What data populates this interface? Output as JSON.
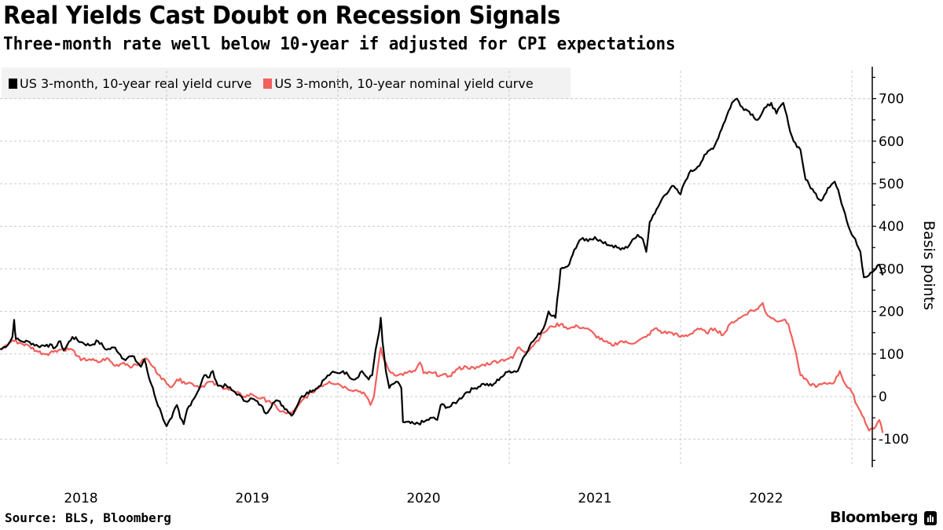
{
  "header": {
    "title": "Real Yields Cast Doubt on Recession Signals",
    "subtitle": "Three-month rate well below 10-year if adjusted for CPI expectations"
  },
  "footer": {
    "source": "Source: BLS, Bloomberg",
    "brand": "Bloomberg",
    "brand_icon": "bloomberg-terminal-icon"
  },
  "chart_data": {
    "type": "line",
    "title": "Real Yields Cast Doubt on Recession Signals",
    "subtitle": "Three-month rate well below 10-year if adjusted for CPI expectations",
    "xlabel": "",
    "ylabel": "Basis points",
    "xlim": [
      2018.0,
      2022.95
    ],
    "ylim": [
      -160,
      780
    ],
    "x_ticks": [
      2018,
      2019,
      2020,
      2021,
      2022
    ],
    "x_tick_labels": [
      "2018",
      "2019",
      "2020",
      "2021",
      "2022"
    ],
    "y_ticks": [
      -100,
      0,
      100,
      200,
      300,
      400,
      500,
      600,
      700
    ],
    "y_tick_labels": [
      "-100",
      "0",
      "100",
      "200",
      "300",
      "400",
      "500",
      "600",
      "700"
    ],
    "y_axis_side": "right",
    "grid": true,
    "legend_position": "top-left",
    "series": [
      {
        "name": "US 3-month, 10-year real yield curve",
        "color": "#000000",
        "points": [
          [
            2018.03,
            110
          ],
          [
            2018.08,
            125
          ],
          [
            2018.1,
            140
          ],
          [
            2018.11,
            180
          ],
          [
            2018.12,
            135
          ],
          [
            2018.15,
            130
          ],
          [
            2018.2,
            128
          ],
          [
            2018.25,
            118
          ],
          [
            2018.3,
            122
          ],
          [
            2018.35,
            115
          ],
          [
            2018.38,
            130
          ],
          [
            2018.4,
            108
          ],
          [
            2018.45,
            140
          ],
          [
            2018.5,
            128
          ],
          [
            2018.55,
            120
          ],
          [
            2018.6,
            130
          ],
          [
            2018.65,
            110
          ],
          [
            2018.7,
            115
          ],
          [
            2018.75,
            88
          ],
          [
            2018.8,
            95
          ],
          [
            2018.85,
            70
          ],
          [
            2018.87,
            88
          ],
          [
            2018.9,
            40
          ],
          [
            2018.92,
            20
          ],
          [
            2018.94,
            -10
          ],
          [
            2018.97,
            -40
          ],
          [
            2019.0,
            -70
          ],
          [
            2019.03,
            -50
          ],
          [
            2019.06,
            -20
          ],
          [
            2019.08,
            -50
          ],
          [
            2019.1,
            -65
          ],
          [
            2019.12,
            -30
          ],
          [
            2019.15,
            -10
          ],
          [
            2019.18,
            10
          ],
          [
            2019.22,
            50
          ],
          [
            2019.25,
            45
          ],
          [
            2019.27,
            60
          ],
          [
            2019.3,
            25
          ],
          [
            2019.35,
            25
          ],
          [
            2019.38,
            15
          ],
          [
            2019.42,
            5
          ],
          [
            2019.45,
            -10
          ],
          [
            2019.5,
            -5
          ],
          [
            2019.55,
            -20
          ],
          [
            2019.58,
            -40
          ],
          [
            2019.62,
            -15
          ],
          [
            2019.65,
            -10
          ],
          [
            2019.7,
            -30
          ],
          [
            2019.73,
            -45
          ],
          [
            2019.78,
            -5
          ],
          [
            2019.82,
            10
          ],
          [
            2019.88,
            20
          ],
          [
            2019.92,
            40
          ],
          [
            2019.96,
            55
          ],
          [
            2020.0,
            55
          ],
          [
            2020.03,
            60
          ],
          [
            2020.06,
            50
          ],
          [
            2020.1,
            40
          ],
          [
            2020.14,
            60
          ],
          [
            2020.18,
            40
          ],
          [
            2020.2,
            50
          ],
          [
            2020.22,
            110
          ],
          [
            2020.24,
            150
          ],
          [
            2020.25,
            185
          ],
          [
            2020.26,
            130
          ],
          [
            2020.28,
            60
          ],
          [
            2020.3,
            20
          ],
          [
            2020.34,
            35
          ],
          [
            2020.37,
            20
          ],
          [
            2020.38,
            -60
          ],
          [
            2020.45,
            -65
          ],
          [
            2020.5,
            -60
          ],
          [
            2020.55,
            -50
          ],
          [
            2020.58,
            -55
          ],
          [
            2020.6,
            -20
          ],
          [
            2020.65,
            -25
          ],
          [
            2020.7,
            -10
          ],
          [
            2020.75,
            10
          ],
          [
            2020.8,
            20
          ],
          [
            2020.85,
            30
          ],
          [
            2020.9,
            25
          ],
          [
            2020.95,
            45
          ],
          [
            2021.0,
            60
          ],
          [
            2021.05,
            60
          ],
          [
            2021.08,
            90
          ],
          [
            2021.12,
            120
          ],
          [
            2021.16,
            140
          ],
          [
            2021.2,
            160
          ],
          [
            2021.23,
            200
          ],
          [
            2021.27,
            185
          ],
          [
            2021.3,
            300
          ],
          [
            2021.35,
            310
          ],
          [
            2021.38,
            345
          ],
          [
            2021.42,
            370
          ],
          [
            2021.46,
            365
          ],
          [
            2021.5,
            375
          ],
          [
            2021.55,
            360
          ],
          [
            2021.6,
            355
          ],
          [
            2021.65,
            345
          ],
          [
            2021.7,
            355
          ],
          [
            2021.75,
            380
          ],
          [
            2021.78,
            370
          ],
          [
            2021.8,
            340
          ],
          [
            2021.82,
            410
          ],
          [
            2021.85,
            430
          ],
          [
            2021.9,
            470
          ],
          [
            2021.95,
            495
          ],
          [
            2022.0,
            475
          ],
          [
            2022.02,
            500
          ],
          [
            2022.05,
            525
          ],
          [
            2022.1,
            540
          ],
          [
            2022.15,
            570
          ],
          [
            2022.2,
            590
          ],
          [
            2022.25,
            640
          ],
          [
            2022.3,
            690
          ],
          [
            2022.33,
            700
          ],
          [
            2022.36,
            680
          ],
          [
            2022.4,
            670
          ],
          [
            2022.45,
            650
          ],
          [
            2022.5,
            680
          ],
          [
            2022.53,
            690
          ],
          [
            2022.56,
            665
          ],
          [
            2022.6,
            690
          ],
          [
            2022.63,
            640
          ],
          [
            2022.66,
            600
          ],
          [
            2022.7,
            580
          ],
          [
            2022.73,
            510
          ],
          [
            2022.78,
            480
          ],
          [
            2022.82,
            460
          ],
          [
            2022.86,
            490
          ],
          [
            2022.9,
            505
          ],
          [
            2022.93,
            470
          ],
          [
            2022.96,
            430
          ],
          [
            2022.99,
            390
          ],
          [
            2023.02,
            370
          ],
          [
            2023.05,
            340
          ],
          [
            2023.07,
            280
          ],
          [
            2023.1,
            285
          ],
          [
            2023.14,
            300
          ],
          [
            2023.16,
            310
          ],
          [
            2023.18,
            285
          ]
        ]
      },
      {
        "name": "US 3-month, 10-year nominal yield curve",
        "color": "#f25f5c",
        "points": [
          [
            2018.0,
            108
          ],
          [
            2018.05,
            115
          ],
          [
            2018.1,
            132
          ],
          [
            2018.15,
            125
          ],
          [
            2018.2,
            118
          ],
          [
            2018.25,
            105
          ],
          [
            2018.3,
            100
          ],
          [
            2018.35,
            108
          ],
          [
            2018.4,
            112
          ],
          [
            2018.45,
            110
          ],
          [
            2018.48,
            95
          ],
          [
            2018.5,
            85
          ],
          [
            2018.55,
            88
          ],
          [
            2018.6,
            80
          ],
          [
            2018.65,
            90
          ],
          [
            2018.7,
            72
          ],
          [
            2018.75,
            80
          ],
          [
            2018.8,
            70
          ],
          [
            2018.85,
            80
          ],
          [
            2018.88,
            90
          ],
          [
            2018.92,
            70
          ],
          [
            2018.96,
            50
          ],
          [
            2019.0,
            30
          ],
          [
            2019.02,
            22
          ],
          [
            2019.06,
            40
          ],
          [
            2019.1,
            35
          ],
          [
            2019.15,
            30
          ],
          [
            2019.2,
            22
          ],
          [
            2019.25,
            35
          ],
          [
            2019.3,
            25
          ],
          [
            2019.35,
            20
          ],
          [
            2019.4,
            10
          ],
          [
            2019.45,
            0
          ],
          [
            2019.5,
            5
          ],
          [
            2019.55,
            -5
          ],
          [
            2019.6,
            -10
          ],
          [
            2019.65,
            -30
          ],
          [
            2019.7,
            -40
          ],
          [
            2019.75,
            -35
          ],
          [
            2019.8,
            -5
          ],
          [
            2019.85,
            10
          ],
          [
            2019.9,
            25
          ],
          [
            2019.95,
            35
          ],
          [
            2020.0,
            30
          ],
          [
            2020.05,
            20
          ],
          [
            2020.1,
            15
          ],
          [
            2020.15,
            10
          ],
          [
            2020.19,
            -20
          ],
          [
            2020.21,
            0
          ],
          [
            2020.23,
            60
          ],
          [
            2020.25,
            115
          ],
          [
            2020.27,
            85
          ],
          [
            2020.3,
            60
          ],
          [
            2020.35,
            50
          ],
          [
            2020.4,
            55
          ],
          [
            2020.45,
            60
          ],
          [
            2020.48,
            80
          ],
          [
            2020.5,
            55
          ],
          [
            2020.55,
            55
          ],
          [
            2020.6,
            50
          ],
          [
            2020.65,
            48
          ],
          [
            2020.7,
            65
          ],
          [
            2020.75,
            70
          ],
          [
            2020.8,
            65
          ],
          [
            2020.85,
            75
          ],
          [
            2020.9,
            80
          ],
          [
            2020.95,
            85
          ],
          [
            2021.0,
            90
          ],
          [
            2021.02,
            90
          ],
          [
            2021.05,
            115
          ],
          [
            2021.1,
            105
          ],
          [
            2021.15,
            125
          ],
          [
            2021.2,
            150
          ],
          [
            2021.25,
            165
          ],
          [
            2021.3,
            170
          ],
          [
            2021.35,
            160
          ],
          [
            2021.4,
            165
          ],
          [
            2021.45,
            160
          ],
          [
            2021.5,
            145
          ],
          [
            2021.55,
            130
          ],
          [
            2021.6,
            120
          ],
          [
            2021.65,
            130
          ],
          [
            2021.7,
            125
          ],
          [
            2021.75,
            130
          ],
          [
            2021.8,
            140
          ],
          [
            2021.85,
            160
          ],
          [
            2021.9,
            150
          ],
          [
            2021.95,
            150
          ],
          [
            2022.0,
            140
          ],
          [
            2022.05,
            145
          ],
          [
            2022.1,
            160
          ],
          [
            2022.15,
            150
          ],
          [
            2022.2,
            160
          ],
          [
            2022.25,
            145
          ],
          [
            2022.3,
            175
          ],
          [
            2022.35,
            185
          ],
          [
            2022.4,
            200
          ],
          [
            2022.45,
            205
          ],
          [
            2022.48,
            220
          ],
          [
            2022.5,
            195
          ],
          [
            2022.55,
            180
          ],
          [
            2022.6,
            180
          ],
          [
            2022.63,
            170
          ],
          [
            2022.65,
            140
          ],
          [
            2022.68,
            90
          ],
          [
            2022.7,
            50
          ],
          [
            2022.75,
            30
          ],
          [
            2022.8,
            25
          ],
          [
            2022.85,
            30
          ],
          [
            2022.9,
            35
          ],
          [
            2022.93,
            60
          ],
          [
            2022.96,
            30
          ],
          [
            2023.0,
            10
          ],
          [
            2023.03,
            -20
          ],
          [
            2023.07,
            -50
          ],
          [
            2023.1,
            -80
          ],
          [
            2023.14,
            -70
          ],
          [
            2023.16,
            -55
          ],
          [
            2023.18,
            -85
          ]
        ]
      }
    ]
  }
}
